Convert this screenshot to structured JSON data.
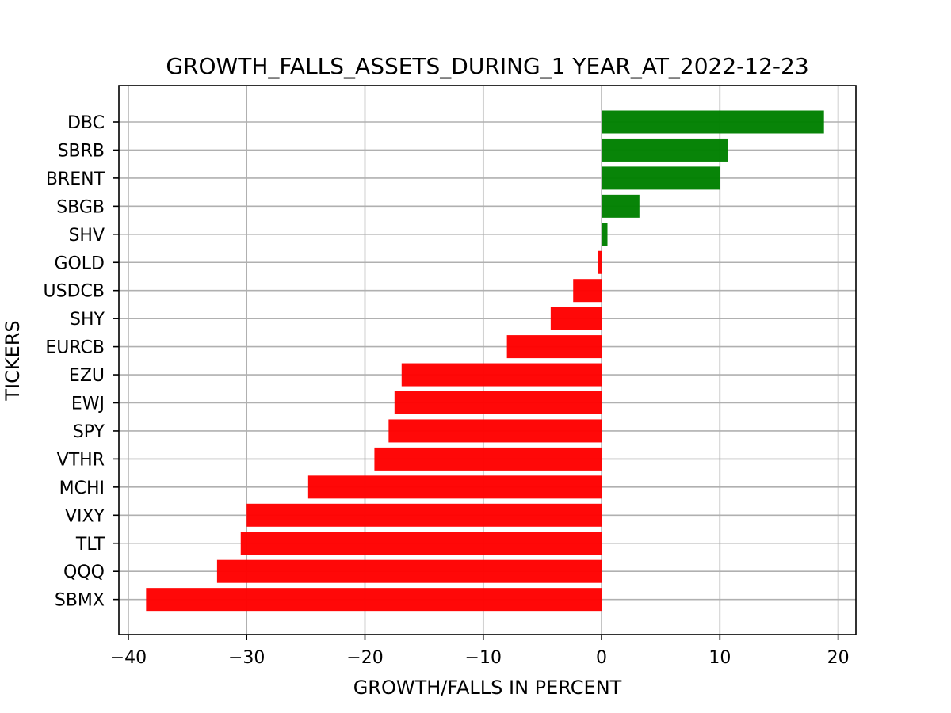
{
  "chart_data": {
    "type": "bar",
    "orientation": "horizontal",
    "title": "GROWTH_FALLS_ASSETS_DURING_1 YEAR_AT_2022-12-23",
    "xlabel": "GROWTH/FALLS IN PERCENT",
    "ylabel": "TICKERS",
    "xlim": [
      -40.8,
      21.5
    ],
    "xticks": [
      -40,
      -30,
      -20,
      -10,
      0,
      10,
      20
    ],
    "xtick_labels": [
      "−40",
      "−30",
      "−20",
      "−10",
      "0",
      "10",
      "20"
    ],
    "grid": true,
    "categories": [
      "DBC",
      "SBRB",
      "BRENT",
      "SBGB",
      "SHV",
      "GOLD",
      "USDCB",
      "SHY",
      "EURCB",
      "EZU",
      "EWJ",
      "SPY",
      "VTHR",
      "MCHI",
      "VIXY",
      "TLT",
      "QQQ",
      "SBMX"
    ],
    "values": [
      18.8,
      10.7,
      10.0,
      3.2,
      0.5,
      -0.3,
      -2.4,
      -4.3,
      -8.0,
      -16.9,
      -17.5,
      -18.0,
      -19.2,
      -24.8,
      -30.0,
      -30.5,
      -32.5,
      -38.5
    ],
    "positive_color": "#008000",
    "negative_color": "#ff0000"
  }
}
